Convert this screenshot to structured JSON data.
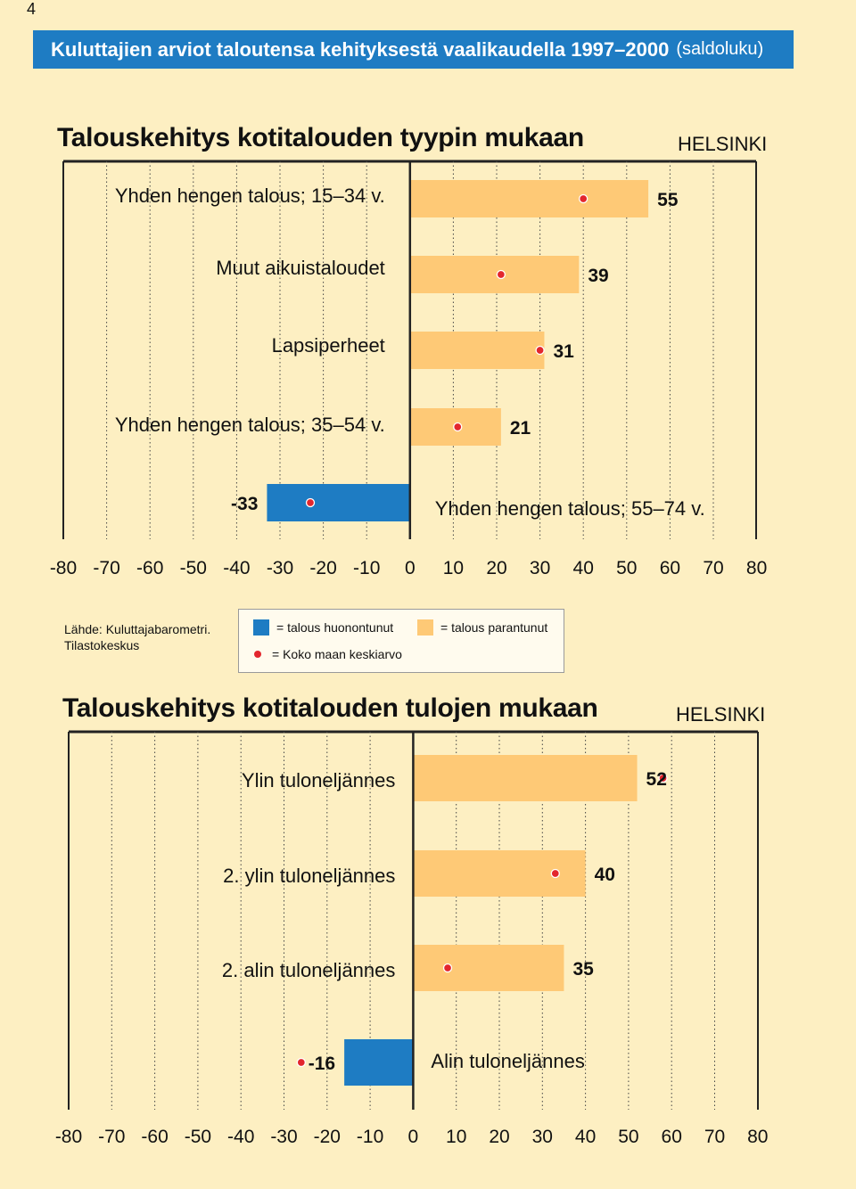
{
  "page_number": "4",
  "header": {
    "title": "Kuluttajien arviot taloutensa kehityksestä vaalikaudella 1997–2000",
    "subtitle": "(saldoluku)"
  },
  "source": {
    "line1": "Lähde: Kuluttajabarometri.",
    "line2": "Tilastokeskus"
  },
  "legend": {
    "negative": "= talous huonontunut",
    "positive": "= talous parantunut",
    "average": "= Koko maan keskiarvo"
  },
  "colors": {
    "positive": "#fec976",
    "negative": "#1e7cc3",
    "dot": "#e3262d",
    "background": "#fdefc2",
    "banner": "#1e7cc3"
  },
  "chart_data": [
    {
      "type": "bar",
      "orientation": "horizontal",
      "title": "Talouskehitys kotitalouden tyypin mukaan",
      "region": "HELSINKI",
      "categories": [
        "Yhden hengen talous; 15–34 v.",
        "Muut aikuistaloudet",
        "Lapsiperheet",
        "Yhden hengen talous; 35–54 v.",
        "Yhden hengen talous; 55–74 v."
      ],
      "values": [
        55,
        39,
        31,
        21,
        -33
      ],
      "value_labels": [
        "55",
        "39",
        "31",
        "21",
        "-33"
      ],
      "average": [
        40,
        21,
        30,
        11,
        -23
      ],
      "xlim": [
        -80,
        80
      ],
      "xticks": [
        "-80",
        "-70",
        "-60",
        "-50",
        "-40",
        "-30",
        "-20",
        "-10",
        "0",
        "10",
        "20",
        "30",
        "40",
        "50",
        "60",
        "70",
        "80"
      ],
      "grid": true
    },
    {
      "type": "bar",
      "orientation": "horizontal",
      "title": "Talouskehitys kotitalouden tulojen mukaan",
      "region": "HELSINKI",
      "categories": [
        "Ylin tuloneljännes",
        "2. ylin tuloneljännes",
        "2. alin tuloneljännes",
        "Alin tuloneljännes"
      ],
      "values": [
        52,
        40,
        35,
        -16
      ],
      "value_labels": [
        "52",
        "40",
        "35",
        "-16"
      ],
      "average": [
        58,
        33,
        8,
        -26
      ],
      "xlim": [
        -80,
        80
      ],
      "xticks": [
        "-80",
        "-70",
        "-60",
        "-50",
        "-40",
        "-30",
        "-20",
        "-10",
        "0",
        "10",
        "20",
        "30",
        "40",
        "50",
        "60",
        "70",
        "80"
      ],
      "grid": true
    }
  ]
}
